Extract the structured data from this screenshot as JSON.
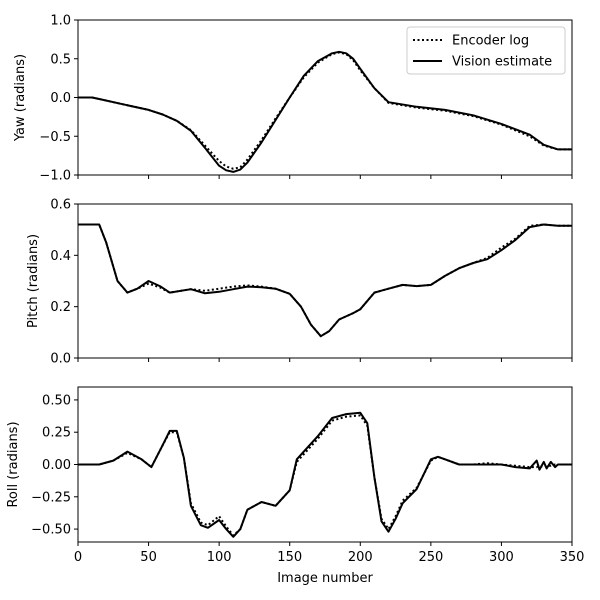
{
  "chart_data": [
    {
      "type": "line",
      "ylabel": "Yaw (radians)",
      "xlim": [
        0,
        350
      ],
      "ylim": [
        -1.0,
        1.0
      ],
      "yticks": [
        -1.0,
        -0.5,
        0.0,
        0.5,
        1.0
      ],
      "ytick_labels": [
        "−1.0",
        "−0.5",
        "0.0",
        "0.5",
        "1.0"
      ],
      "legend": {
        "location": "top-right",
        "entries": [
          "Encoder log",
          "Vision estimate"
        ]
      },
      "x": [
        0,
        10,
        15,
        30,
        50,
        60,
        70,
        80,
        90,
        100,
        105,
        110,
        115,
        120,
        130,
        140,
        150,
        160,
        170,
        180,
        185,
        190,
        195,
        200,
        210,
        220,
        240,
        260,
        280,
        300,
        320,
        330,
        340,
        350
      ],
      "series": [
        {
          "name": "Encoder log",
          "style": "dotted",
          "values": [
            0,
            0,
            -0.02,
            -0.08,
            -0.16,
            -0.22,
            -0.3,
            -0.42,
            -0.62,
            -0.82,
            -0.89,
            -0.92,
            -0.9,
            -0.8,
            -0.55,
            -0.27,
            0.0,
            0.26,
            0.45,
            0.56,
            0.58,
            0.56,
            0.48,
            0.35,
            0.12,
            -0.07,
            -0.13,
            -0.17,
            -0.24,
            -0.35,
            -0.5,
            -0.62,
            -0.67,
            -0.67
          ]
        },
        {
          "name": "Vision estimate",
          "style": "solid",
          "values": [
            0,
            0,
            -0.02,
            -0.08,
            -0.16,
            -0.22,
            -0.3,
            -0.43,
            -0.65,
            -0.88,
            -0.94,
            -0.96,
            -0.93,
            -0.84,
            -0.58,
            -0.29,
            0.0,
            0.28,
            0.47,
            0.57,
            0.59,
            0.57,
            0.5,
            0.37,
            0.12,
            -0.06,
            -0.12,
            -0.16,
            -0.23,
            -0.34,
            -0.48,
            -0.61,
            -0.67,
            -0.67
          ]
        }
      ]
    },
    {
      "type": "line",
      "ylabel": "Pitch (radians)",
      "xlim": [
        0,
        350
      ],
      "ylim": [
        0.0,
        0.6
      ],
      "yticks": [
        0.0,
        0.2,
        0.4,
        0.6
      ],
      "ytick_labels": [
        "0.0",
        "0.2",
        "0.4",
        "0.6"
      ],
      "x": [
        0,
        15,
        20,
        28,
        35,
        42,
        50,
        58,
        65,
        80,
        90,
        100,
        110,
        120,
        130,
        140,
        150,
        158,
        165,
        172,
        178,
        185,
        195,
        200,
        210,
        220,
        230,
        240,
        250,
        260,
        270,
        280,
        290,
        300,
        310,
        320,
        330,
        340,
        350
      ],
      "series": [
        {
          "name": "Encoder log",
          "style": "dotted",
          "values": [
            0.52,
            0.52,
            0.45,
            0.3,
            0.255,
            0.27,
            0.29,
            0.275,
            0.255,
            0.268,
            0.262,
            0.27,
            0.278,
            0.283,
            0.278,
            0.27,
            0.25,
            0.2,
            0.13,
            0.085,
            0.105,
            0.15,
            0.175,
            0.19,
            0.255,
            0.27,
            0.285,
            0.28,
            0.285,
            0.32,
            0.35,
            0.37,
            0.39,
            0.43,
            0.465,
            0.515,
            0.52,
            0.515,
            0.515
          ]
        },
        {
          "name": "Vision estimate",
          "style": "solid",
          "values": [
            0.52,
            0.52,
            0.45,
            0.3,
            0.255,
            0.27,
            0.3,
            0.28,
            0.255,
            0.268,
            0.252,
            0.258,
            0.268,
            0.278,
            0.276,
            0.27,
            0.25,
            0.2,
            0.13,
            0.085,
            0.105,
            0.15,
            0.175,
            0.19,
            0.255,
            0.27,
            0.285,
            0.28,
            0.285,
            0.32,
            0.35,
            0.37,
            0.385,
            0.42,
            0.46,
            0.51,
            0.52,
            0.515,
            0.515
          ]
        }
      ]
    },
    {
      "type": "line",
      "ylabel": "Roll (radians)",
      "xlabel": "Image number",
      "xlim": [
        0,
        350
      ],
      "ylim": [
        -0.6,
        0.6
      ],
      "yticks": [
        -0.5,
        -0.25,
        0.0,
        0.25,
        0.5
      ],
      "ytick_labels": [
        "−0.50",
        "−0.25",
        "0.00",
        "0.25",
        "0.50"
      ],
      "xticks": [
        0,
        50,
        100,
        150,
        200,
        250,
        300,
        350
      ],
      "xtick_labels": [
        "0",
        "50",
        "100",
        "150",
        "200",
        "250",
        "300",
        "350"
      ],
      "x": [
        0,
        15,
        25,
        35,
        45,
        52,
        60,
        65,
        70,
        75,
        80,
        87,
        92,
        100,
        105,
        110,
        115,
        120,
        130,
        140,
        150,
        155,
        160,
        170,
        180,
        190,
        200,
        205,
        210,
        215,
        220,
        225,
        230,
        240,
        250,
        255,
        260,
        270,
        280,
        290,
        300,
        310,
        320,
        325,
        327,
        330,
        332,
        335,
        338,
        340,
        345,
        350
      ],
      "series": [
        {
          "name": "Encoder log",
          "style": "dotted",
          "values": [
            0.0,
            0.0,
            0.03,
            0.09,
            0.04,
            -0.02,
            0.15,
            0.25,
            0.25,
            0.05,
            -0.3,
            -0.45,
            -0.47,
            -0.4,
            -0.48,
            -0.55,
            -0.5,
            -0.35,
            -0.29,
            -0.32,
            -0.2,
            0.02,
            0.08,
            0.2,
            0.34,
            0.37,
            0.38,
            0.3,
            -0.1,
            -0.42,
            -0.5,
            -0.4,
            -0.28,
            -0.18,
            0.03,
            0.06,
            0.04,
            0.0,
            0.0,
            0.01,
            0.0,
            -0.01,
            -0.02,
            -0.02,
            -0.01,
            -0.02,
            -0.01,
            -0.01,
            0.0,
            0.0,
            0.0,
            0.0
          ]
        },
        {
          "name": "Vision estimate",
          "style": "solid",
          "values": [
            0.0,
            0.0,
            0.03,
            0.1,
            0.04,
            -0.02,
            0.15,
            0.26,
            0.26,
            0.05,
            -0.32,
            -0.47,
            -0.49,
            -0.43,
            -0.5,
            -0.56,
            -0.5,
            -0.35,
            -0.29,
            -0.32,
            -0.2,
            0.04,
            0.1,
            0.22,
            0.36,
            0.39,
            0.4,
            0.32,
            -0.1,
            -0.44,
            -0.52,
            -0.42,
            -0.3,
            -0.19,
            0.04,
            0.06,
            0.04,
            0.0,
            0.0,
            0.0,
            0.0,
            -0.02,
            -0.03,
            0.03,
            -0.04,
            0.02,
            -0.03,
            0.02,
            -0.02,
            0.0,
            0.0,
            0.0
          ]
        }
      ]
    }
  ]
}
